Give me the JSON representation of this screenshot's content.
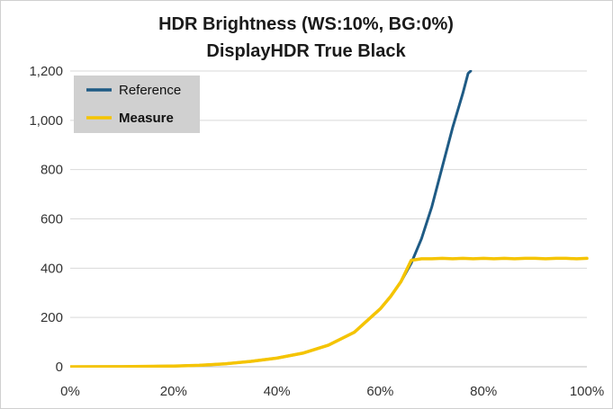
{
  "chart_data": {
    "type": "line",
    "title": "HDR Brightness (WS:10%, BG:0%)",
    "subtitle": "DisplayHDR True Black",
    "xlabel": "",
    "ylabel": "",
    "xlim": [
      0,
      100
    ],
    "ylim": [
      0,
      1200
    ],
    "x_ticks": [
      "0%",
      "20%",
      "40%",
      "60%",
      "80%",
      "100%"
    ],
    "y_ticks": [
      "0",
      "200",
      "400",
      "600",
      "800",
      "1,000",
      "1,200"
    ],
    "grid": "horizontal",
    "legend_position": "top-left",
    "series": [
      {
        "name": "Reference",
        "color": "#1f5b85",
        "bold": false,
        "x": [
          0,
          10,
          20,
          25,
          30,
          35,
          40,
          45,
          50,
          55,
          60,
          62,
          64,
          66,
          68,
          70,
          72,
          74,
          76,
          77,
          77.5
        ],
        "y": [
          0,
          0.5,
          3,
          6,
          12,
          22,
          35,
          55,
          88,
          140,
          235,
          285,
          345,
          420,
          520,
          650,
          810,
          970,
          1110,
          1190,
          1200
        ]
      },
      {
        "name": "Measure",
        "color": "#f5c400",
        "bold": true,
        "x": [
          0,
          10,
          20,
          25,
          30,
          35,
          40,
          45,
          50,
          55,
          60,
          62,
          64,
          66,
          68,
          70,
          72,
          74,
          76,
          78,
          80,
          82,
          84,
          86,
          88,
          90,
          92,
          94,
          96,
          98,
          100
        ],
        "y": [
          0,
          0.5,
          3,
          6,
          12,
          22,
          35,
          55,
          88,
          140,
          235,
          285,
          345,
          432,
          438,
          438,
          440,
          438,
          440,
          438,
          440,
          438,
          440,
          438,
          440,
          440,
          438,
          440,
          440,
          438,
          440
        ]
      }
    ]
  }
}
